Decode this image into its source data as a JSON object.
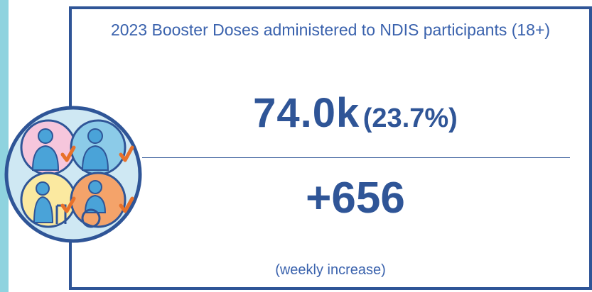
{
  "card": {
    "title": "2023 Booster Doses administered to NDIS participants (18+)",
    "total": "74.0k",
    "share": "(23.7%)",
    "weekly_change": "+656",
    "note": "(weekly increase)"
  }
}
